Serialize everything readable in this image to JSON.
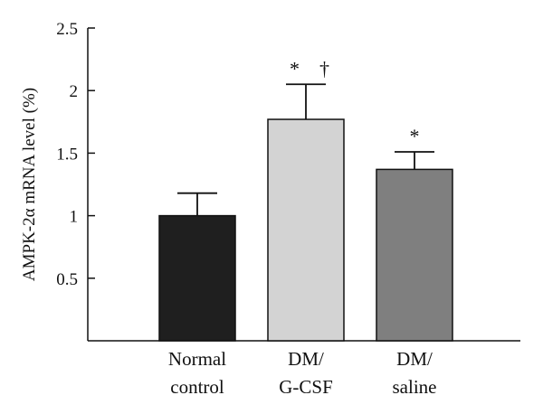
{
  "chart_data": {
    "type": "bar",
    "title": "",
    "xlabel": "",
    "ylabel": "AMPK-2α mRNA level (%)",
    "ylim": [
      0,
      2.5
    ],
    "yticks": [
      0.5,
      1,
      1.5,
      2,
      2.5
    ],
    "ytick_labels": [
      "0.5",
      "1",
      "1.5",
      "2",
      "2.5"
    ],
    "categories": [
      [
        "Normal",
        "control"
      ],
      [
        "DM/",
        "G-CSF"
      ],
      [
        "DM/",
        "saline"
      ]
    ],
    "values": [
      1.0,
      1.77,
      1.37
    ],
    "error_upper": [
      1.18,
      2.05,
      1.51
    ],
    "annotations": [
      "",
      "* †",
      "*"
    ],
    "colors": [
      "#1f1f1f",
      "#d3d3d3",
      "#7f7f7f"
    ],
    "grid": false
  }
}
